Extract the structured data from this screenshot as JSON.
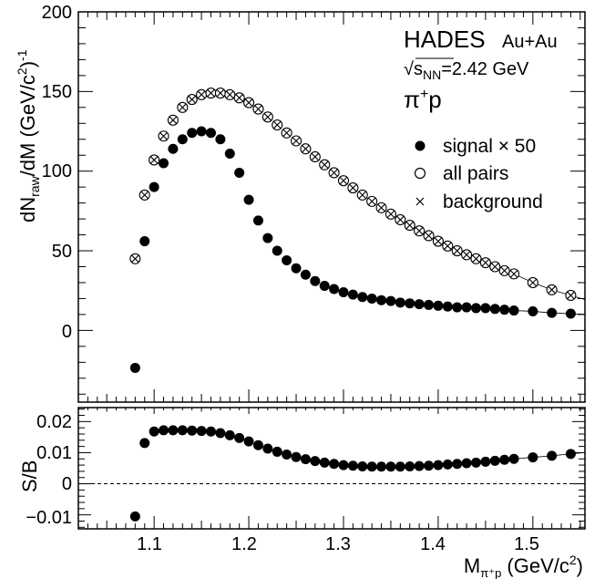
{
  "chart_data": [
    {
      "type": "scatter",
      "panel": "upper",
      "title": "",
      "xlabel": "",
      "ylabel_main": "dN",
      "ylabel_sub": "raw",
      "ylabel_tail": "/dM (GeV/c",
      "ylabel_sup1": "2",
      "ylabel_close": ")",
      "ylabel_sup2": "-1",
      "xlim": [
        1.02,
        1.555
      ],
      "ylim": [
        -45,
        200
      ],
      "yticks": [
        0,
        50,
        100,
        150,
        200
      ],
      "ytick_labels": [
        "0",
        "50",
        "100",
        "150",
        "200"
      ],
      "xticks": [
        1.1,
        1.2,
        1.3,
        1.4,
        1.5
      ],
      "x": [
        1.08,
        1.09,
        1.1,
        1.11,
        1.12,
        1.13,
        1.14,
        1.15,
        1.16,
        1.17,
        1.18,
        1.19,
        1.2,
        1.21,
        1.22,
        1.23,
        1.24,
        1.25,
        1.26,
        1.27,
        1.28,
        1.29,
        1.3,
        1.31,
        1.32,
        1.33,
        1.34,
        1.35,
        1.36,
        1.37,
        1.38,
        1.39,
        1.4,
        1.41,
        1.42,
        1.43,
        1.44,
        1.45,
        1.46,
        1.47,
        1.48,
        1.5,
        1.52,
        1.54
      ],
      "series": [
        {
          "name": "signal × 50",
          "marker": "filled-circle",
          "values": [
            -23.5,
            56,
            90,
            105,
            114,
            120,
            124,
            125,
            124,
            120,
            111,
            99,
            82,
            69,
            58,
            50,
            44,
            39,
            35,
            31,
            28,
            26,
            24,
            22.5,
            21,
            20,
            19,
            18.5,
            17.5,
            17,
            16.5,
            16,
            15.5,
            15,
            14.5,
            14.5,
            14,
            14,
            13.5,
            13,
            12.5,
            12,
            11,
            10.5
          ]
        },
        {
          "name": "all pairs",
          "marker": "open-circle",
          "values": [
            45,
            85,
            107,
            122,
            132,
            140,
            145,
            148,
            149,
            149,
            148,
            146,
            143,
            139,
            134,
            129,
            124,
            119,
            114,
            109,
            104,
            99,
            94,
            89.5,
            85,
            81,
            77,
            73,
            69.5,
            66,
            62.5,
            59.5,
            56,
            53,
            50,
            47.5,
            45,
            42.5,
            40,
            37.5,
            35.5,
            30,
            25.5,
            22
          ]
        },
        {
          "name": "background",
          "marker": "cross",
          "values": [
            45,
            85,
            107,
            122,
            132,
            140,
            145,
            148,
            149,
            149,
            148,
            146,
            143,
            139,
            134,
            129,
            124,
            119,
            114,
            109,
            104,
            99,
            94,
            89.5,
            85,
            81,
            77,
            73,
            69.5,
            66,
            62.5,
            59.5,
            56,
            53,
            50,
            47.5,
            45,
            42.5,
            40,
            37.5,
            35.5,
            30,
            25.5,
            22
          ]
        }
      ]
    },
    {
      "type": "scatter",
      "panel": "lower",
      "xlabel_main": "M",
      "xlabel_sub": "π⁺p",
      "xlabel_tail": " (GeV/c",
      "xlabel_sup": "2",
      "xlabel_close": ")",
      "ylabel": "S/B",
      "xlim": [
        1.02,
        1.555
      ],
      "ylim": [
        -0.0145,
        0.0245
      ],
      "yticks": [
        -0.01,
        0,
        0.01,
        0.02
      ],
      "ytick_labels": [
        "−0.01",
        "0",
        "0.01",
        "0.02"
      ],
      "xticks": [
        1.1,
        1.2,
        1.3,
        1.4,
        1.5
      ],
      "xtick_labels": [
        "1.1",
        "1.2",
        "1.3",
        "1.4",
        "1.5"
      ],
      "reference_line": 0,
      "x": [
        1.08,
        1.09,
        1.1,
        1.11,
        1.12,
        1.13,
        1.14,
        1.15,
        1.16,
        1.17,
        1.18,
        1.19,
        1.2,
        1.21,
        1.22,
        1.23,
        1.24,
        1.25,
        1.26,
        1.27,
        1.28,
        1.29,
        1.3,
        1.31,
        1.32,
        1.33,
        1.34,
        1.35,
        1.36,
        1.37,
        1.38,
        1.39,
        1.4,
        1.41,
        1.42,
        1.43,
        1.44,
        1.45,
        1.46,
        1.47,
        1.48,
        1.5,
        1.52,
        1.54
      ],
      "series": [
        {
          "name": "S/B",
          "marker": "filled-circle",
          "values": [
            -0.0105,
            0.0131,
            0.0168,
            0.0172,
            0.0172,
            0.0172,
            0.0171,
            0.017,
            0.0168,
            0.0163,
            0.0156,
            0.0147,
            0.0136,
            0.0124,
            0.0113,
            0.0103,
            0.0094,
            0.0086,
            0.0079,
            0.0073,
            0.0068,
            0.0064,
            0.006,
            0.0058,
            0.0056,
            0.0055,
            0.0055,
            0.0055,
            0.0055,
            0.0056,
            0.0057,
            0.0058,
            0.006,
            0.0062,
            0.0064,
            0.0066,
            0.0068,
            0.0071,
            0.0074,
            0.0077,
            0.008,
            0.0085,
            0.009,
            0.0096
          ]
        }
      ]
    }
  ],
  "annotations": {
    "experiment": "HADES",
    "system": "Au+Au",
    "energy_prefix": "√s",
    "energy_sub": "NN",
    "energy_value": "=2.42 GeV",
    "pair_main": "π",
    "pair_sup": "+",
    "pair_tail": "p"
  },
  "legend": [
    {
      "label": "signal × 50",
      "marker": "filled-circle"
    },
    {
      "label": "all pairs",
      "marker": "open-circle"
    },
    {
      "label": "background",
      "marker": "cross"
    }
  ]
}
